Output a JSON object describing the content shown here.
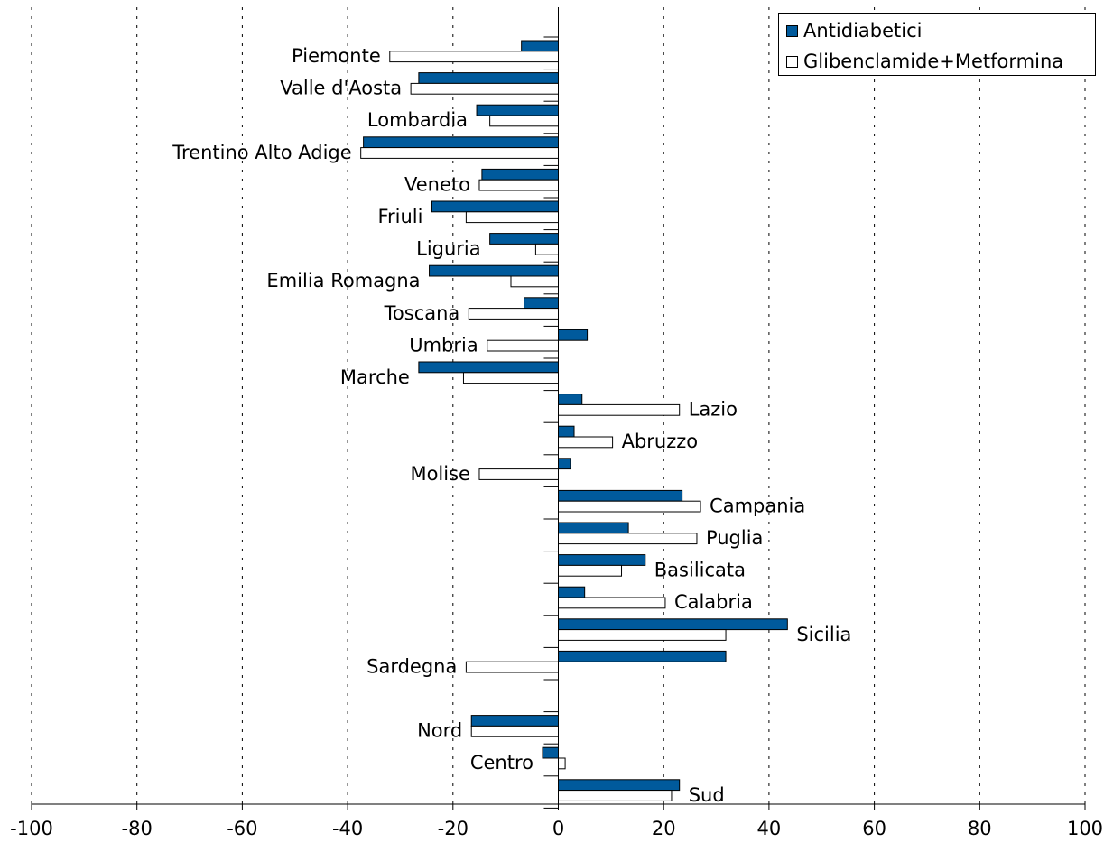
{
  "chart_data": {
    "type": "bar",
    "orientation": "horizontal",
    "categories": [
      "Piemonte",
      "Valle d'Aosta",
      "Lombardia",
      "Trentino Alto Adige",
      "Veneto",
      "Friuli",
      "Liguria",
      "Emilia Romagna",
      "Toscana",
      "Umbria",
      "Marche",
      "Lazio",
      "Abruzzo",
      "Molise",
      "Campania",
      "Puglia",
      "Basilicata",
      "Calabria",
      "Sicilia",
      "Sardegna",
      "",
      "Nord",
      "Centro",
      "Sud"
    ],
    "series": [
      {
        "name": "Antidiabetici",
        "color": "#005a9c",
        "values": [
          -7,
          -26.5,
          -15.5,
          -37,
          -14.5,
          -24,
          -13,
          -24.5,
          -6.5,
          5.5,
          -26.5,
          4.5,
          3,
          2.3,
          23.5,
          13.3,
          16.5,
          5,
          43.5,
          31.8,
          null,
          -16.5,
          -3,
          23
        ]
      },
      {
        "name": "Glibenclamide+Metformina",
        "color": "#ffffff",
        "values": [
          -32,
          -28,
          -13,
          -37.5,
          -15,
          -17.5,
          -4.3,
          -9,
          -17,
          -13.5,
          -18,
          23,
          10.3,
          -15,
          27,
          26.3,
          12,
          20.3,
          31.8,
          -17.5,
          null,
          -16.5,
          1.3,
          21.5
        ]
      }
    ],
    "xlim": [
      -100,
      100
    ],
    "xticks": [
      -100,
      -80,
      -60,
      -40,
      -20,
      0,
      20,
      40,
      60,
      80,
      100
    ],
    "grid": "vertical dotted",
    "legend_position": "top-right"
  }
}
